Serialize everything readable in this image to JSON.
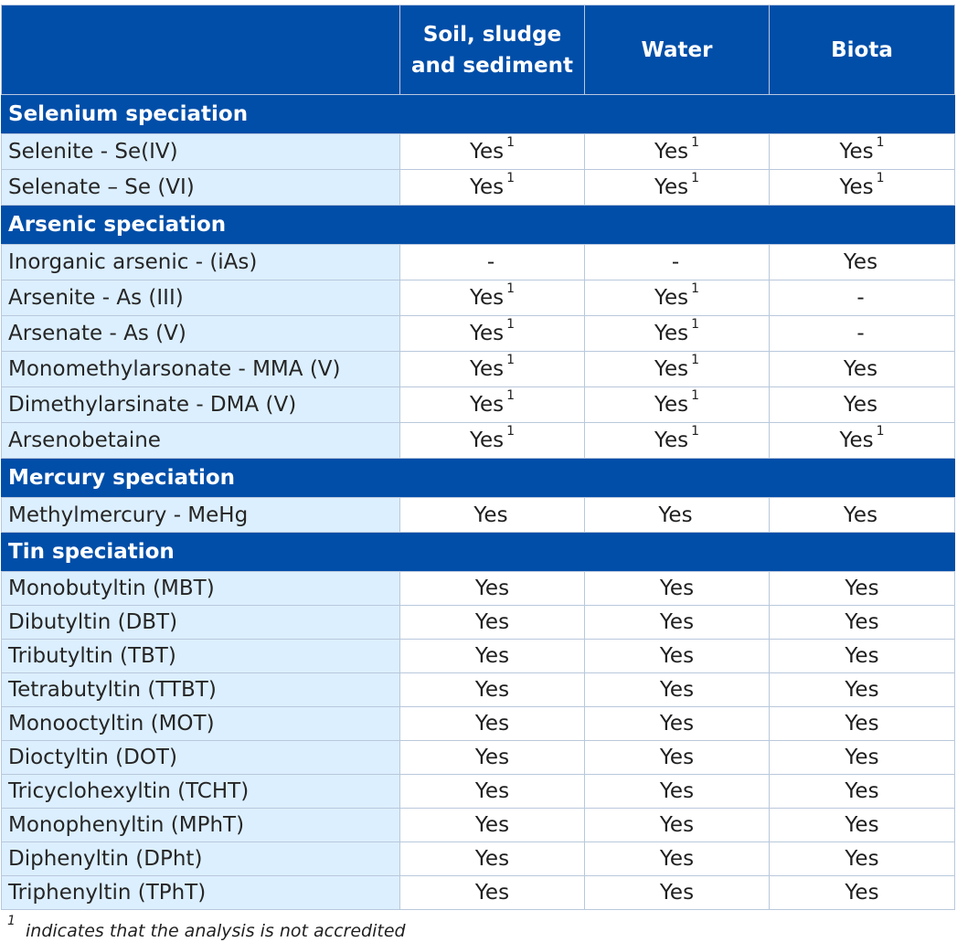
{
  "table": {
    "header": {
      "blank": "",
      "col_soil": "Soil, sludge and sediment",
      "col_water": "Water",
      "col_biota": "Biota"
    },
    "sections": [
      {
        "title": "Selenium speciation",
        "rows": [
          {
            "label": "Selenite - Se(IV)",
            "soil": "Yes",
            "soil_fn": "1",
            "water": "Yes",
            "water_fn": "1",
            "biota": "Yes",
            "biota_fn": "1"
          },
          {
            "label": "Selenate – Se (VI)",
            "soil": "Yes",
            "soil_fn": "1",
            "water": "Yes",
            "water_fn": "1",
            "biota": "Yes",
            "biota_fn": "1"
          }
        ]
      },
      {
        "title": "Arsenic speciation",
        "rows": [
          {
            "label": "Inorganic arsenic - (iAs)",
            "soil": "-",
            "soil_fn": "",
            "water": "-",
            "water_fn": "",
            "biota": "Yes",
            "biota_fn": ""
          },
          {
            "label": "Arsenite - As (III)",
            "soil": "Yes",
            "soil_fn": "1",
            "water": "Yes",
            "water_fn": "1",
            "biota": "-",
            "biota_fn": ""
          },
          {
            "label": "Arsenate - As (V)",
            "soil": "Yes",
            "soil_fn": "1",
            "water": "Yes",
            "water_fn": "1",
            "biota": "-",
            "biota_fn": ""
          },
          {
            "label": "Monomethylarsonate - MMA (V)",
            "soil": "Yes",
            "soil_fn": "1",
            "water": "Yes",
            "water_fn": "1",
            "biota": "Yes",
            "biota_fn": ""
          },
          {
            "label": "Dimethylarsinate - DMA (V)",
            "soil": "Yes",
            "soil_fn": "1",
            "water": "Yes",
            "water_fn": "1",
            "biota": "Yes",
            "biota_fn": ""
          },
          {
            "label": "Arsenobetaine",
            "soil": "Yes",
            "soil_fn": "1",
            "water": "Yes",
            "water_fn": "1",
            "biota": "Yes",
            "biota_fn": "1"
          }
        ]
      },
      {
        "title": "Mercury speciation",
        "rows": [
          {
            "label": "Methylmercury - MeHg",
            "soil": "Yes",
            "soil_fn": "",
            "water": "Yes",
            "water_fn": "",
            "biota": "Yes",
            "biota_fn": ""
          }
        ]
      },
      {
        "title": "Tin speciation",
        "rows": [
          {
            "label": "Monobutyltin (MBT)",
            "soil": "Yes",
            "soil_fn": "",
            "water": "Yes",
            "water_fn": "",
            "biota": "Yes",
            "biota_fn": ""
          },
          {
            "label": "Dibutyltin (DBT)",
            "soil": "Yes",
            "soil_fn": "",
            "water": "Yes",
            "water_fn": "",
            "biota": "Yes",
            "biota_fn": ""
          },
          {
            "label": "Tributyltin (TBT)",
            "soil": "Yes",
            "soil_fn": "",
            "water": "Yes",
            "water_fn": "",
            "biota": "Yes",
            "biota_fn": ""
          },
          {
            "label": "Tetrabutyltin (TTBT)",
            "soil": "Yes",
            "soil_fn": "",
            "water": "Yes",
            "water_fn": "",
            "biota": "Yes",
            "biota_fn": ""
          },
          {
            "label": "Monooctyltin (MOT)",
            "soil": "Yes",
            "soil_fn": "",
            "water": "Yes",
            "water_fn": "",
            "biota": "Yes",
            "biota_fn": ""
          },
          {
            "label": "Dioctyltin (DOT)",
            "soil": "Yes",
            "soil_fn": "",
            "water": "Yes",
            "water_fn": "",
            "biota": "Yes",
            "biota_fn": ""
          },
          {
            "label": "Tricyclohexyltin (TCHT)",
            "soil": "Yes",
            "soil_fn": "",
            "water": "Yes",
            "water_fn": "",
            "biota": "Yes",
            "biota_fn": ""
          },
          {
            "label": "Monophenyltin (MPhT)",
            "soil": "Yes",
            "soil_fn": "",
            "water": "Yes",
            "water_fn": "",
            "biota": "Yes",
            "biota_fn": ""
          },
          {
            "label": "Diphenyltin (DPht)",
            "soil": "Yes",
            "soil_fn": "",
            "water": "Yes",
            "water_fn": "",
            "biota": "Yes",
            "biota_fn": ""
          },
          {
            "label": "Triphenyltin (TPhT)",
            "soil": "Yes",
            "soil_fn": "",
            "water": "Yes",
            "water_fn": "",
            "biota": "Yes",
            "biota_fn": ""
          }
        ]
      }
    ]
  },
  "footnote": {
    "marker": "1",
    "text": "indicates that the analysis is not accredited"
  },
  "colors": {
    "header_bg": "#004ea8",
    "header_text": "#ffffff",
    "label_bg": "#dcefff",
    "border": "#b9c8dc"
  }
}
